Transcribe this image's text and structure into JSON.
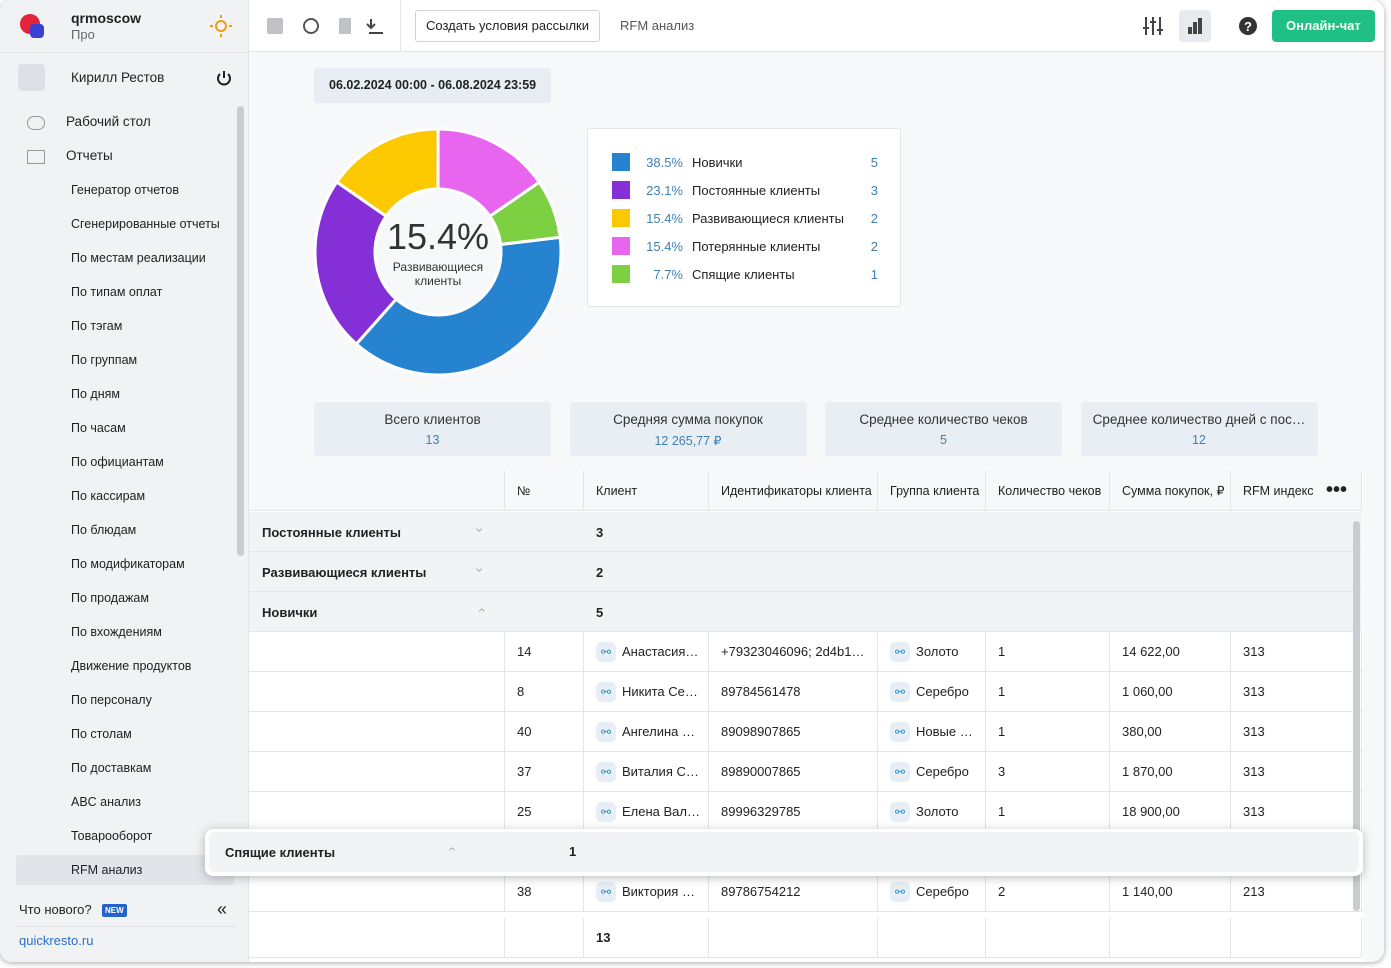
{
  "sidebar": {
    "brand": "qrmoscow",
    "plan": "Про",
    "user": "Кирилл Рестов",
    "menu": [
      "Рабочий стол",
      "Отчеты"
    ],
    "reports": [
      "Генератор отчетов",
      "Сгенерированные отчеты",
      "По местам реализации",
      "По типам оплат",
      "По тэгам",
      "По группам",
      "По дням",
      "По часам",
      "По официантам",
      "По кассирам",
      "По блюдам",
      "По модификаторам",
      "По продажам",
      "По вхождениям",
      "Движение продуктов",
      "По персоналу",
      "По столам",
      "По доставкам",
      "ABC анализ",
      "Товарооборот",
      "RFM анализ"
    ],
    "whats_new": "Что нового?",
    "new_badge": "NEW",
    "site": "quickresto.ru"
  },
  "toolbar": {
    "button": "Создать условия рассылки",
    "tab": "RFM анализ",
    "chat": "Онлайн-чат"
  },
  "date_range": "06.02.2024 00:00 - 06.08.2024 23:59",
  "chart_data": {
    "type": "donut",
    "center_value": "15.4%",
    "center_label": "Развивающиеся клиенты",
    "categories": [
      "Новички",
      "Постоянные клиенты",
      "Развивающиеся клиенты",
      "Потерянные клиенты",
      "Спящие клиенты"
    ],
    "values": [
      5,
      3,
      2,
      2,
      1
    ],
    "percent_labels": [
      "38.5%",
      "23.1%",
      "15.4%",
      "15.4%",
      "7.7%"
    ],
    "colors": [
      "#2583d0",
      "#8430d6",
      "#fcc800",
      "#e865ef",
      "#7ed043"
    ]
  },
  "stats": [
    {
      "label": "Всего клиентов",
      "value": "13"
    },
    {
      "label": "Средняя сумма покупок",
      "value": "12 265,77 ₽"
    },
    {
      "label": "Среднее количество чеков",
      "value": "5"
    },
    {
      "label": "Среднее количество дней с пос…",
      "value": "12"
    }
  ],
  "table": {
    "headers": [
      "№",
      "Клиент",
      "Идентификаторы клиента",
      "Группа клиента",
      "Количество чеков",
      "Сумма покупок, ₽",
      "RFM индекс"
    ],
    "groups": [
      {
        "name": "Постоянные клиенты",
        "count": "3"
      },
      {
        "name": "Развивающиеся клиенты",
        "count": "2"
      },
      {
        "name": "Новички",
        "count": "5"
      }
    ],
    "rows": [
      [
        "14",
        "Анастасия…",
        "+79323046096; 2d4b1…",
        "Золото",
        "1",
        "14 622,00",
        "313"
      ],
      [
        "8",
        "Никита Се…",
        "89784561478",
        "Серебро",
        "1",
        "1 060,00",
        "313"
      ],
      [
        "40",
        "Ангелина …",
        "89098907865",
        "Новые …",
        "1",
        "380,00",
        "313"
      ],
      [
        "37",
        "Виталия С…",
        "89890007865",
        "Серебро",
        "3",
        "1 870,00",
        "313"
      ],
      [
        "25",
        "Елена Вал…",
        "89996329785",
        "Золото",
        "1",
        "18 900,00",
        "313"
      ]
    ],
    "dragged_group": {
      "name": "Спящие клиенты",
      "count": "1"
    },
    "last_row": [
      "38",
      "Виктория …",
      "89786754212",
      "Серебро",
      "2",
      "1 140,00",
      "213"
    ],
    "total": "13"
  }
}
